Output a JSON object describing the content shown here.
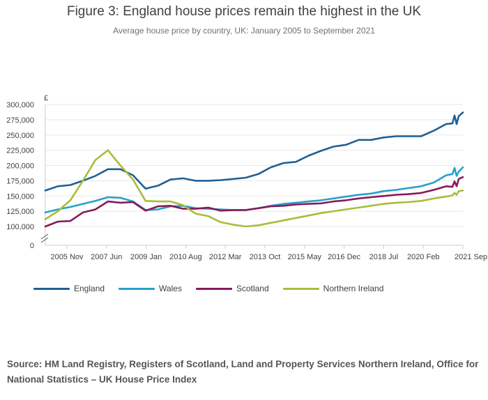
{
  "title": "Figure 3: England house prices remain the highest in the UK",
  "subtitle": "Average house price by country, UK: January 2005 to September 2021",
  "source": "Source: HM Land Registry, Registers of Scotland, Land and Property Services Northern Ireland, Office for National Statistics – UK House Price Index",
  "colors": {
    "England": "#206095",
    "Wales": "#27a0cc",
    "Scotland": "#871a5b",
    "Northern Ireland": "#a8bd3a"
  },
  "chart_data": {
    "type": "line",
    "title": "Figure 3: England house prices remain the highest in the UK",
    "subtitle": "Average house price by country, UK: January 2005 to September 2021",
    "ylabel": "£",
    "x_range": [
      "2005-01",
      "2021-09"
    ],
    "ylim": [
      0,
      300000
    ],
    "axis_break": true,
    "y_ticks": [
      0,
      100000,
      125000,
      150000,
      175000,
      200000,
      225000,
      250000,
      275000,
      300000
    ],
    "y_tick_labels": [
      "0",
      "100,000",
      "125,000",
      "150,000",
      "175,000",
      "200,000",
      "225,000",
      "250,000",
      "275,000",
      "300,000"
    ],
    "x_tick_labels": [
      "2005 Nov",
      "2007 Jun",
      "2009 Jan",
      "2010 Aug",
      "2012 Mar",
      "2013 Oct",
      "2015 May",
      "2016 Dec",
      "2018 Jul",
      "2020 Feb",
      "2021 Sep"
    ],
    "grid": true,
    "legend_position": "bottom",
    "series": [
      {
        "name": "England",
        "x": [
          "2005-01",
          "2005-07",
          "2006-01",
          "2006-07",
          "2007-01",
          "2007-07",
          "2008-01",
          "2008-07",
          "2009-01",
          "2009-07",
          "2010-01",
          "2010-07",
          "2011-01",
          "2011-07",
          "2012-01",
          "2012-07",
          "2013-01",
          "2013-07",
          "2014-01",
          "2014-07",
          "2015-01",
          "2015-07",
          "2016-01",
          "2016-07",
          "2017-01",
          "2017-07",
          "2018-01",
          "2018-07",
          "2019-01",
          "2019-07",
          "2020-01",
          "2020-07",
          "2021-01",
          "2021-04",
          "2021-05",
          "2021-06",
          "2021-07",
          "2021-09"
        ],
        "values": [
          159000,
          166000,
          168000,
          175000,
          183000,
          194000,
          194000,
          184000,
          162000,
          167000,
          177000,
          179000,
          175000,
          175000,
          176000,
          178000,
          180000,
          186000,
          197000,
          204000,
          206000,
          216000,
          224000,
          231000,
          234000,
          242000,
          242000,
          246000,
          248000,
          248000,
          248000,
          257000,
          268000,
          269000,
          282000,
          268000,
          281000,
          287000
        ]
      },
      {
        "name": "Wales",
        "x": [
          "2005-01",
          "2005-07",
          "2006-01",
          "2006-07",
          "2007-01",
          "2007-07",
          "2008-01",
          "2008-07",
          "2009-01",
          "2009-07",
          "2010-01",
          "2010-07",
          "2011-01",
          "2011-07",
          "2012-01",
          "2012-07",
          "2013-01",
          "2013-07",
          "2014-01",
          "2014-07",
          "2015-01",
          "2015-07",
          "2016-01",
          "2016-07",
          "2017-01",
          "2017-07",
          "2018-01",
          "2018-07",
          "2019-01",
          "2019-07",
          "2020-01",
          "2020-07",
          "2021-01",
          "2021-04",
          "2021-05",
          "2021-06",
          "2021-07",
          "2021-09"
        ],
        "values": [
          123000,
          128000,
          132000,
          137000,
          142000,
          148000,
          147000,
          141000,
          127000,
          128000,
          133000,
          134000,
          130000,
          129000,
          128000,
          127000,
          127000,
          130000,
          134000,
          137000,
          139000,
          141000,
          143000,
          146000,
          149000,
          152000,
          154000,
          158000,
          160000,
          163000,
          166000,
          172000,
          184000,
          186000,
          196000,
          183000,
          190000,
          197000
        ]
      },
      {
        "name": "Scotland",
        "x": [
          "2005-01",
          "2005-07",
          "2006-01",
          "2006-07",
          "2007-01",
          "2007-07",
          "2008-01",
          "2008-07",
          "2009-01",
          "2009-07",
          "2010-01",
          "2010-07",
          "2011-01",
          "2011-07",
          "2012-01",
          "2012-07",
          "2013-01",
          "2013-07",
          "2014-01",
          "2014-07",
          "2015-01",
          "2015-07",
          "2016-01",
          "2016-07",
          "2017-01",
          "2017-07",
          "2018-01",
          "2018-07",
          "2019-01",
          "2019-07",
          "2020-01",
          "2020-07",
          "2021-01",
          "2021-04",
          "2021-05",
          "2021-06",
          "2021-07",
          "2021-09"
        ],
        "values": [
          93000,
          108000,
          109000,
          123000,
          128000,
          141000,
          139000,
          140000,
          126000,
          133000,
          134000,
          129000,
          129000,
          131000,
          126000,
          127000,
          127000,
          130000,
          133000,
          134000,
          136000,
          137000,
          138000,
          141000,
          143000,
          146000,
          148000,
          150000,
          152000,
          153000,
          155000,
          160000,
          166000,
          165000,
          174000,
          166000,
          178000,
          181000
        ]
      },
      {
        "name": "Northern Ireland",
        "x": [
          "2005-01",
          "2005-07",
          "2006-01",
          "2006-07",
          "2007-01",
          "2007-07",
          "2008-01",
          "2008-07",
          "2009-01",
          "2009-07",
          "2010-01",
          "2010-07",
          "2011-01",
          "2011-07",
          "2012-01",
          "2012-07",
          "2013-01",
          "2013-07",
          "2014-01",
          "2014-07",
          "2015-01",
          "2015-07",
          "2016-01",
          "2016-07",
          "2017-01",
          "2017-07",
          "2018-01",
          "2018-07",
          "2019-01",
          "2019-07",
          "2020-01",
          "2020-07",
          "2021-01",
          "2021-04",
          "2021-05",
          "2021-06",
          "2021-07",
          "2021-09"
        ],
        "values": [
          112000,
          125000,
          143000,
          175000,
          209000,
          225000,
          200000,
          177000,
          142000,
          141000,
          141000,
          135000,
          121000,
          117000,
          107000,
          103000,
          99000,
          102000,
          106000,
          110000,
          114000,
          118000,
          122000,
          125000,
          128000,
          131000,
          134000,
          137000,
          139000,
          140000,
          142000,
          146000,
          149000,
          151000,
          155000,
          152000,
          158000,
          159000
        ]
      }
    ]
  }
}
